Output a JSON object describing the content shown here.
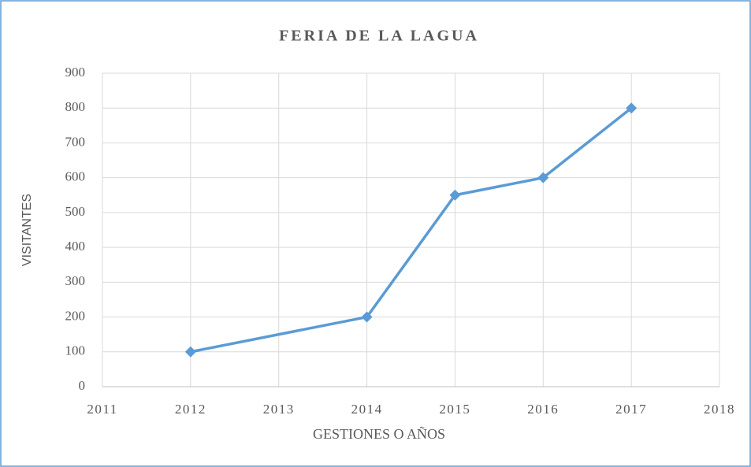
{
  "chart_data": {
    "type": "line",
    "title": "FERIA DE LA LAGUA",
    "x_label": "GESTIONES O AÑOS",
    "y_label": "VISITANTES",
    "x": [
      2012,
      2014,
      2015,
      2016,
      2017
    ],
    "values": [
      100,
      200,
      550,
      600,
      800
    ],
    "color": "#5b9bd5",
    "marker": "diamond",
    "xlim": [
      2011,
      2018
    ],
    "xticks": [
      2011,
      2012,
      2013,
      2014,
      2015,
      2016,
      2017,
      2018
    ],
    "ylim": [
      0,
      900
    ],
    "yticks": [
      0,
      100,
      200,
      300,
      400,
      500,
      600,
      700,
      800,
      900
    ],
    "grid": true
  }
}
